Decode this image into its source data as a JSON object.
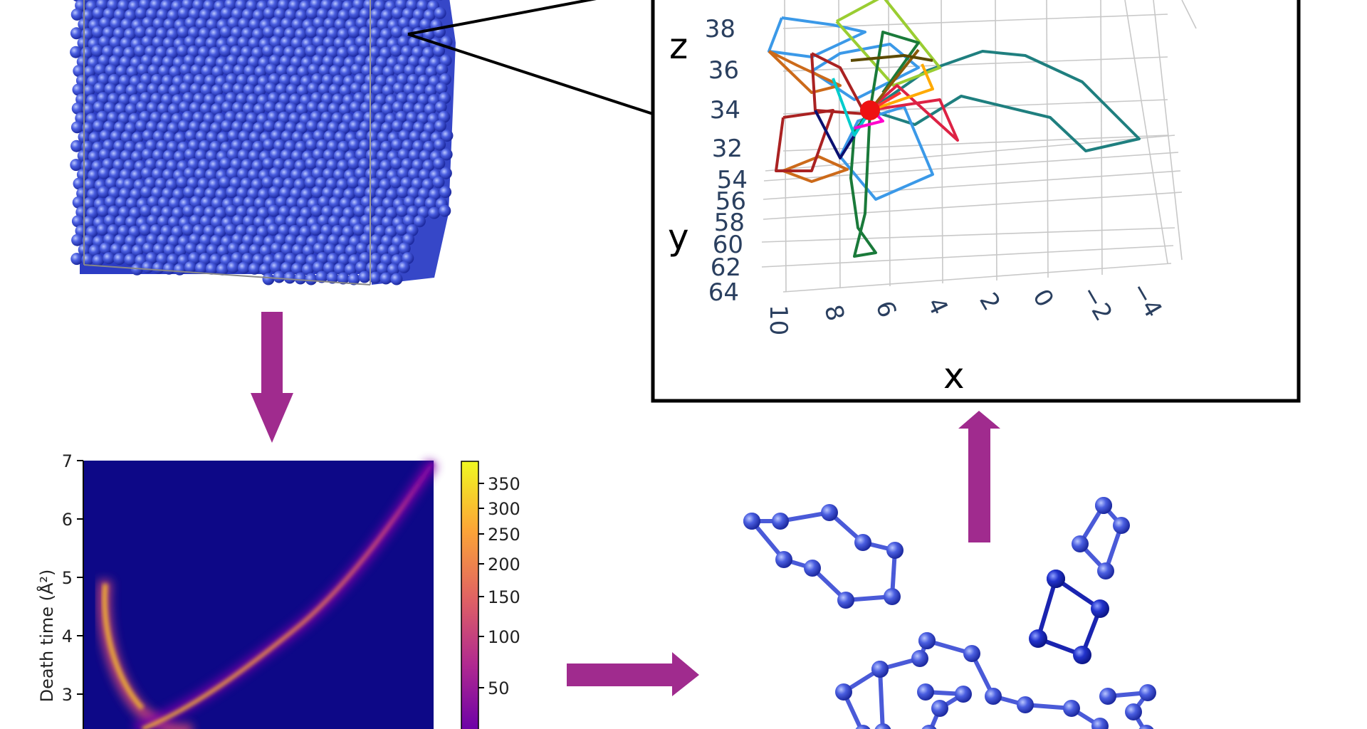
{
  "colors": {
    "arrow": "#a02b8e",
    "atom": "#3344cc",
    "heatmap_bg": "#0d0887",
    "axis_text": "#2a3f5f"
  },
  "panel_3d": {
    "z_label": "z",
    "y_label": "y",
    "x_label": "x",
    "z_ticks": [
      "38",
      "36",
      "34",
      "32"
    ],
    "y_ticks": [
      "54",
      "56",
      "58",
      "60",
      "62",
      "64"
    ],
    "x_ticks": [
      "10",
      "8",
      "6",
      "4",
      "2",
      "0",
      "−2",
      "−4"
    ]
  },
  "heatmap": {
    "ylabel": "Death time (Å²)",
    "yticks": [
      "7",
      "6",
      "5",
      "4",
      "3"
    ],
    "colorbar_ticks": [
      "350",
      "300",
      "250",
      "200",
      "150",
      "100",
      "50"
    ]
  },
  "chart_data": {
    "type": "heatmap",
    "ylabel": "Death time (Å²)",
    "ylim_visible": [
      2.6,
      7
    ],
    "y_ticks": [
      3,
      4,
      5,
      6,
      7
    ],
    "colorbar": {
      "ticks": [
        50,
        100,
        150,
        200,
        250,
        300,
        350
      ],
      "scale": "log"
    }
  }
}
